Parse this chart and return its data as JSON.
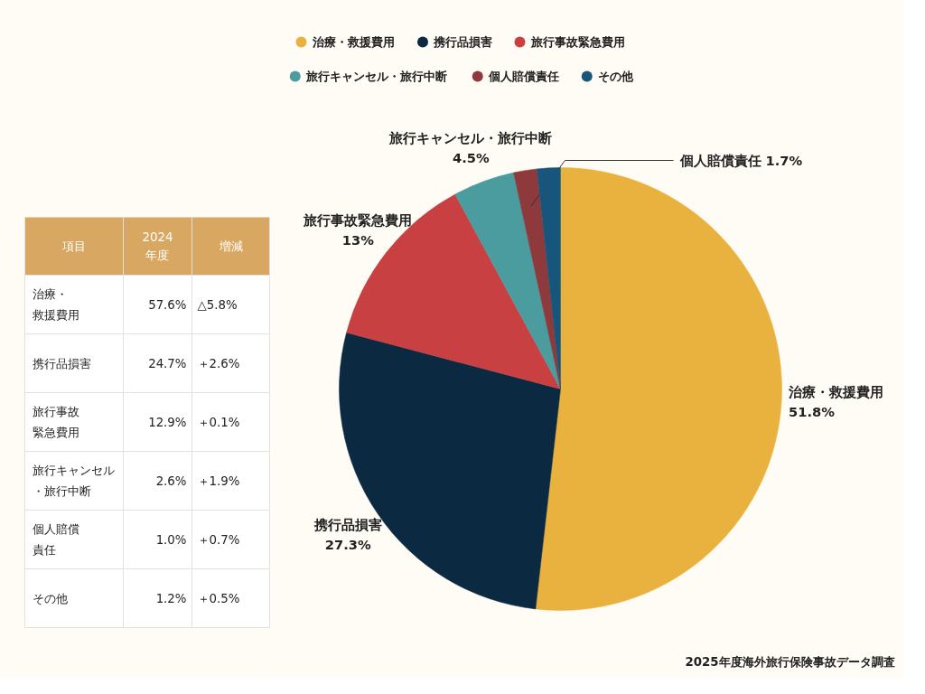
{
  "chart_data": [
    {
      "type": "pie",
      "categories": [
        "治療・救援費用",
        "携行品損害",
        "旅行事故緊急費用",
        "旅行キャンセル・旅行中断",
        "個人賠償責任",
        "その他"
      ],
      "values": [
        51.8,
        27.3,
        13,
        4.5,
        1.7,
        1.7
      ],
      "colors": [
        "#e9b23f",
        "#0b2a42",
        "#c94042",
        "#4b9c9f",
        "#8e393b",
        "#17567a"
      ],
      "value_labels": [
        "51.8%",
        "27.3%",
        "13%",
        "4.5%",
        "1.7%",
        null
      ],
      "legend": "top",
      "annotations": [
        "2025年度海外旅行保険事故データ調査"
      ]
    },
    {
      "type": "other",
      "categories": [
        "項目",
        "2024年度",
        "増減"
      ],
      "y_categories": [
        "治療・救援費用",
        "携行品損害",
        "旅行事故緊急費用",
        "旅行キャンセル・旅行中断",
        "個人賠償責任",
        "その他"
      ],
      "cell_labels": [
        [
          "57.6%",
          "△5.8%"
        ],
        [
          "24.7%",
          "＋2.6%"
        ],
        [
          "12.9%",
          "＋0.1%"
        ],
        [
          "2.6%",
          "＋1.9%"
        ],
        [
          "1.0%",
          "＋0.7%"
        ],
        [
          "1.2%",
          "＋0.5%"
        ]
      ]
    }
  ]
}
